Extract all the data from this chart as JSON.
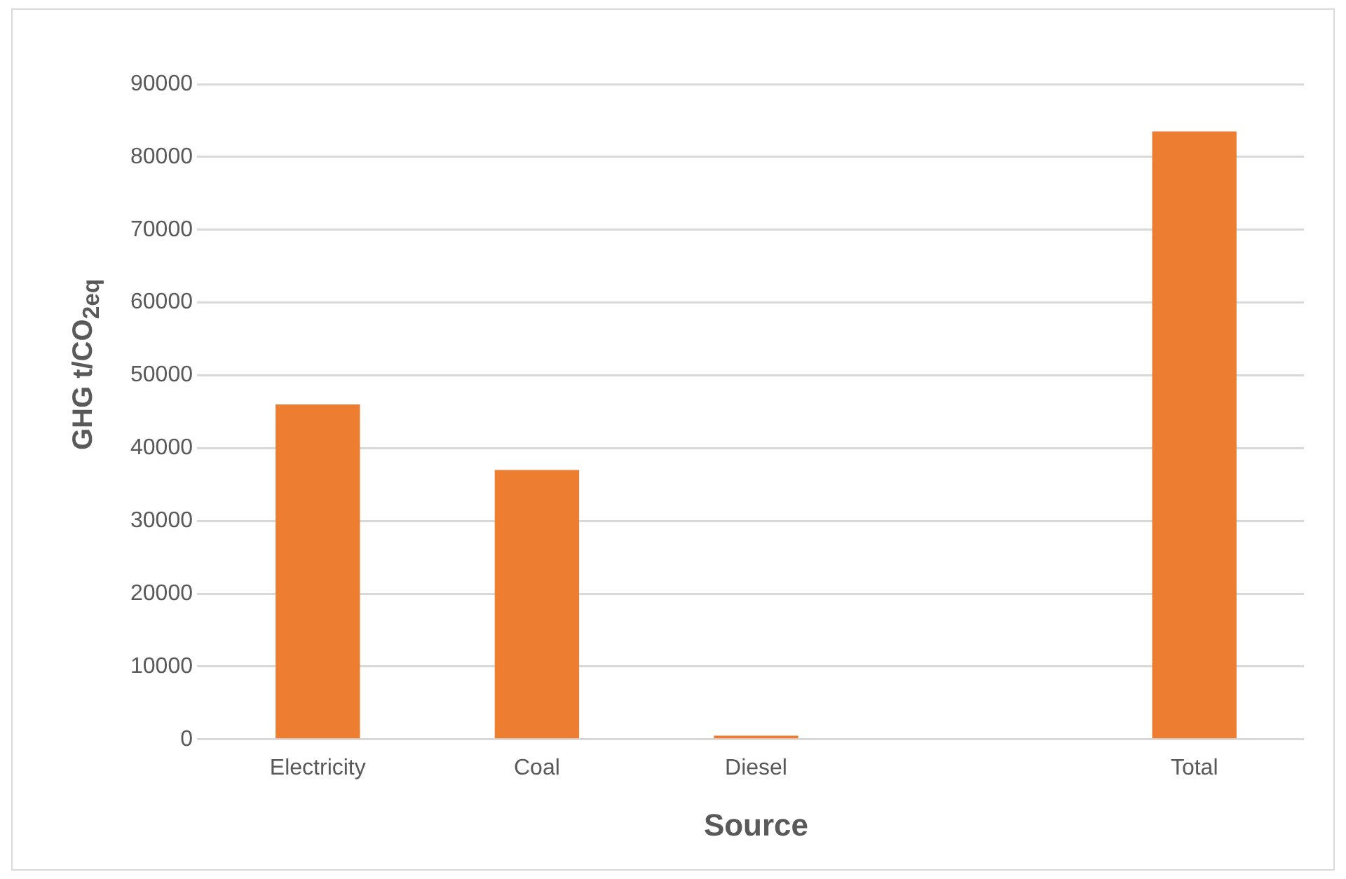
{
  "chart_data": {
    "type": "bar",
    "xlabel": "Source",
    "ylabel": "GHG t/CO$_{2eq}$",
    "categories": [
      "Electricity",
      "Coal",
      "Diesel",
      null,
      "Total"
    ],
    "values": [
      46000,
      37000,
      500,
      null,
      83500
    ],
    "color": "#ed7d31",
    "ylim": [
      0,
      90000
    ],
    "yticks": [
      0,
      10000,
      20000,
      30000,
      40000,
      50000,
      60000,
      70000,
      80000,
      90000
    ],
    "grid": "y",
    "legend": false
  }
}
